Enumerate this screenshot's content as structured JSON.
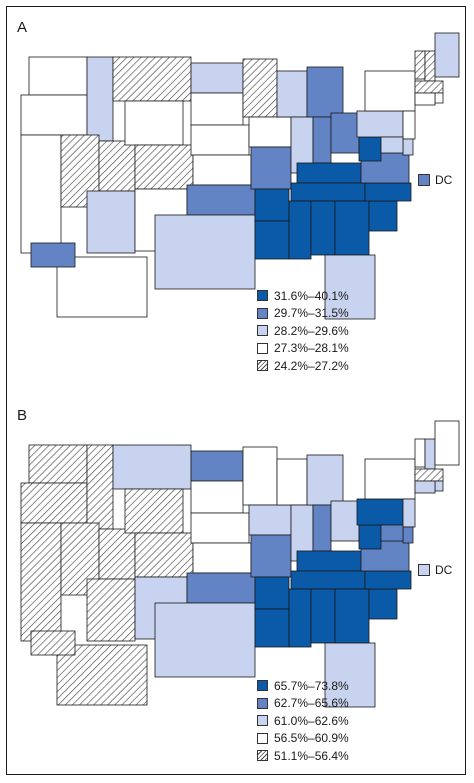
{
  "colors": {
    "dark": "#0a5aa8",
    "medium": "#6384c4",
    "light": "#c7d3ef",
    "white": "#ffffff",
    "hatch": "#d9d9d9",
    "outline": "#1a1a1a"
  },
  "panels": [
    {
      "letter": "A",
      "dc_label": "DC",
      "dc_class": "medium",
      "legend": [
        {
          "label": "31.6%–40.1%",
          "class": "dark"
        },
        {
          "label": "29.7%–31.5%",
          "class": "medium"
        },
        {
          "label": "28.2%–29.6%",
          "class": "light"
        },
        {
          "label": "27.3%–28.1%",
          "class": "white"
        },
        {
          "label": "24.2%–27.2%",
          "class": "hatch"
        }
      ],
      "state_classes": {
        "WA": "white",
        "OR": "white",
        "CA": "white",
        "ID": "light",
        "NV": "hatch",
        "UT": "hatch",
        "AZ": "light",
        "MT": "hatch",
        "WY": "white",
        "CO": "hatch",
        "NM": "white",
        "ND": "light",
        "SD": "white",
        "NE": "white",
        "KS": "white",
        "OK": "medium",
        "TX": "light",
        "MN": "hatch",
        "IA": "white",
        "MO": "medium",
        "AR": "dark",
        "LA": "dark",
        "WI": "light",
        "IL": "light",
        "MI": "medium",
        "IN": "medium",
        "OH": "medium",
        "KY": "dark",
        "TN": "dark",
        "MS": "dark",
        "AL": "dark",
        "GA": "dark",
        "FL": "light",
        "SC": "dark",
        "NC": "dark",
        "VA": "medium",
        "WV": "dark",
        "PA": "light",
        "NY": "white",
        "VT": "hatch",
        "NH": "hatch",
        "ME": "light",
        "MA": "hatch",
        "RI": "white",
        "CT": "white",
        "NJ": "white",
        "DE": "light",
        "MD": "light",
        "AK": "white",
        "HI": "medium"
      }
    },
    {
      "letter": "B",
      "dc_label": "DC",
      "dc_class": "light",
      "legend": [
        {
          "label": "65.7%–73.8%",
          "class": "dark"
        },
        {
          "label": "62.7%–65.6%",
          "class": "medium"
        },
        {
          "label": "61.0%–62.6%",
          "class": "light"
        },
        {
          "label": "56.5%–60.9%",
          "class": "white"
        },
        {
          "label": "51.1%–56.4%",
          "class": "hatch"
        }
      ],
      "state_classes": {
        "WA": "hatch",
        "OR": "hatch",
        "CA": "hatch",
        "ID": "hatch",
        "NV": "hatch",
        "UT": "hatch",
        "AZ": "hatch",
        "MT": "light",
        "WY": "hatch",
        "CO": "hatch",
        "NM": "light",
        "ND": "medium",
        "SD": "white",
        "NE": "white",
        "KS": "white",
        "OK": "medium",
        "TX": "light",
        "MN": "white",
        "IA": "light",
        "MO": "medium",
        "AR": "dark",
        "LA": "dark",
        "WI": "white",
        "IL": "light",
        "MI": "light",
        "IN": "medium",
        "OH": "light",
        "KY": "dark",
        "TN": "dark",
        "MS": "dark",
        "AL": "dark",
        "GA": "dark",
        "FL": "light",
        "SC": "dark",
        "NC": "dark",
        "VA": "medium",
        "WV": "dark",
        "PA": "dark",
        "NY": "white",
        "VT": "white",
        "NH": "light",
        "ME": "white",
        "MA": "hatch",
        "RI": "light",
        "CT": "light",
        "NJ": "light",
        "DE": "medium",
        "MD": "medium",
        "AK": "hatch",
        "HI": "hatch"
      }
    }
  ]
}
